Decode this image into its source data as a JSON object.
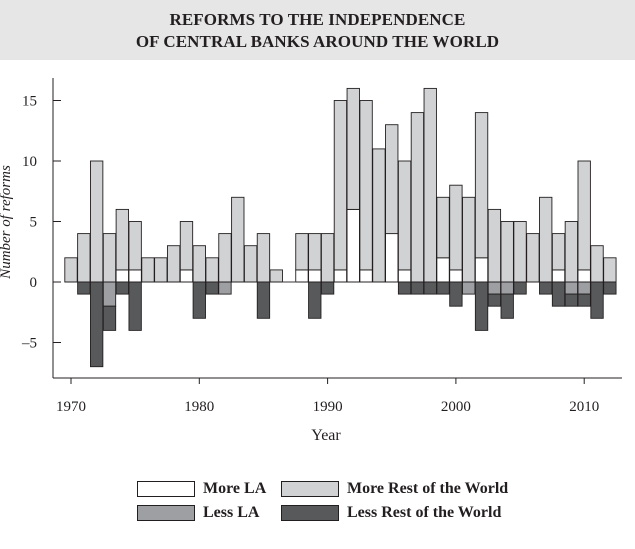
{
  "chart_data": {
    "type": "bar",
    "title_lines": [
      "REFORMS TO THE INDEPENDENCE",
      "OF CENTRAL BANKS AROUND THE WORLD"
    ],
    "xlabel": "Year",
    "ylabel": "Number of reforms",
    "xlim": [
      1969,
      2013
    ],
    "ylim": [
      -8,
      16
    ],
    "x_ticks": [
      "1970",
      "1980",
      "1990",
      "2000",
      "2010"
    ],
    "y_ticks": [
      "15",
      "10",
      "5",
      "0",
      "–5"
    ],
    "colors": {
      "more_la": "#ffffff",
      "less_la": "#9d9fa2",
      "more_row": "#d1d2d4",
      "less_row": "#58595b",
      "outline": "#231f20"
    },
    "legend": [
      {
        "key": "more_la",
        "label": "More LA"
      },
      {
        "key": "more_row",
        "label": "More Rest of the World"
      },
      {
        "key": "less_la",
        "label": "Less LA"
      },
      {
        "key": "less_row",
        "label": "Less Rest of the World"
      }
    ],
    "years": [
      1970,
      1971,
      1972,
      1973,
      1974,
      1975,
      1976,
      1977,
      1978,
      1979,
      1980,
      1981,
      1982,
      1983,
      1984,
      1985,
      1986,
      1987,
      1988,
      1989,
      1990,
      1991,
      1992,
      1993,
      1994,
      1995,
      1996,
      1997,
      1998,
      1999,
      2000,
      2001,
      2002,
      2003,
      2004,
      2005,
      2006,
      2007,
      2008,
      2009,
      2010,
      2011,
      2012
    ],
    "series": [
      {
        "key": "more_la",
        "name": "More LA",
        "values": [
          0,
          0,
          0,
          0,
          1,
          1,
          0,
          0,
          0,
          1,
          0,
          0,
          0,
          0,
          0,
          0,
          0,
          0,
          1,
          1,
          0,
          1,
          6,
          1,
          0,
          4,
          1,
          0,
          0,
          2,
          1,
          0,
          2,
          0,
          0,
          0,
          0,
          0,
          1,
          0,
          1,
          0,
          0
        ]
      },
      {
        "key": "more_row",
        "name": "More Rest of the World",
        "values": [
          2,
          4,
          10,
          4,
          5,
          4,
          2,
          2,
          3,
          4,
          3,
          2,
          4,
          7,
          3,
          4,
          1,
          0,
          3,
          3,
          4,
          14,
          10,
          14,
          11,
          9,
          9,
          14,
          16,
          5,
          7,
          7,
          12,
          6,
          5,
          5,
          4,
          7,
          3,
          5,
          9,
          3,
          2
        ]
      },
      {
        "key": "less_la",
        "name": "Less LA",
        "values": [
          0,
          0,
          0,
          2,
          0,
          0,
          0,
          0,
          0,
          0,
          0,
          0,
          1,
          0,
          0,
          0,
          0,
          0,
          0,
          0,
          0,
          0,
          0,
          0,
          0,
          0,
          0,
          0,
          0,
          0,
          0,
          1,
          0,
          1,
          1,
          0,
          0,
          0,
          0,
          1,
          1,
          0,
          0
        ]
      },
      {
        "key": "less_row",
        "name": "Less Rest of the World",
        "values": [
          0,
          1,
          7,
          2,
          1,
          4,
          0,
          0,
          0,
          0,
          3,
          1,
          0,
          0,
          0,
          3,
          0,
          0,
          0,
          3,
          1,
          0,
          0,
          0,
          0,
          0,
          1,
          1,
          1,
          1,
          2,
          0,
          4,
          1,
          2,
          1,
          0,
          1,
          2,
          1,
          1,
          3,
          1
        ]
      }
    ]
  }
}
